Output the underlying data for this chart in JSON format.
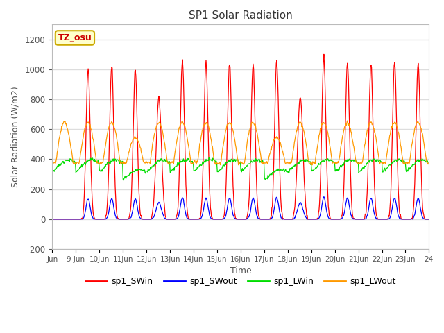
{
  "title": "SP1 Solar Radiation",
  "xlabel": "Time",
  "ylabel": "Solar Radiation (W/m2)",
  "ylim": [
    -200,
    1300
  ],
  "yticks": [
    -200,
    0,
    200,
    400,
    600,
    800,
    1000,
    1200
  ],
  "annotation_text": "TZ_osu",
  "annotation_color": "#cc0000",
  "annotation_bg": "#ffffcc",
  "annotation_border": "#ccaa00",
  "colors": {
    "SWin": "#ff0000",
    "SWout": "#0000ff",
    "LWin": "#00dd00",
    "LWout": "#ff9900"
  },
  "legend_labels": [
    "sp1_SWin",
    "sp1_SWout",
    "sp1_LWin",
    "sp1_LWout"
  ],
  "plot_bg": "#ffffff",
  "fig_bg": "#ffffff",
  "grid_color": "#dddddd",
  "tick_color": "#555555",
  "title_color": "#333333"
}
